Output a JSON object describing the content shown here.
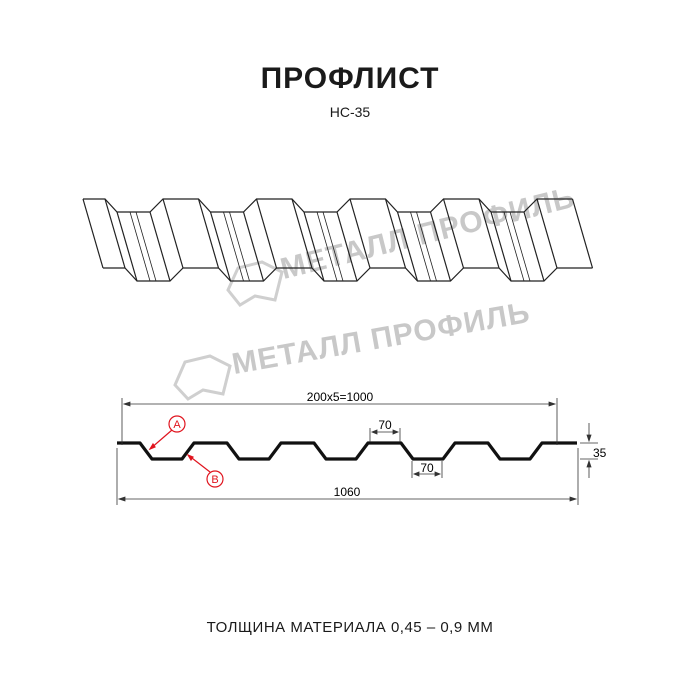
{
  "header": {
    "title": "ПРОФЛИСТ",
    "model": "НС-35"
  },
  "watermark": {
    "text": "МЕТАЛЛ ПРОФИЛЬ",
    "color": "#c8c8c8"
  },
  "drawing": {
    "dim_useful_width": "200x5=1000",
    "dim_full_width": "1060",
    "dim_height": "35",
    "dim_top_rib": "70",
    "dim_bottom_rib": "70",
    "marker_a": "A",
    "marker_b": "B",
    "marker_color": "#e0141e"
  },
  "footer": {
    "thickness": "ТОЛЩИНА МАТЕРИАЛА 0,45 – 0,9 ММ"
  }
}
